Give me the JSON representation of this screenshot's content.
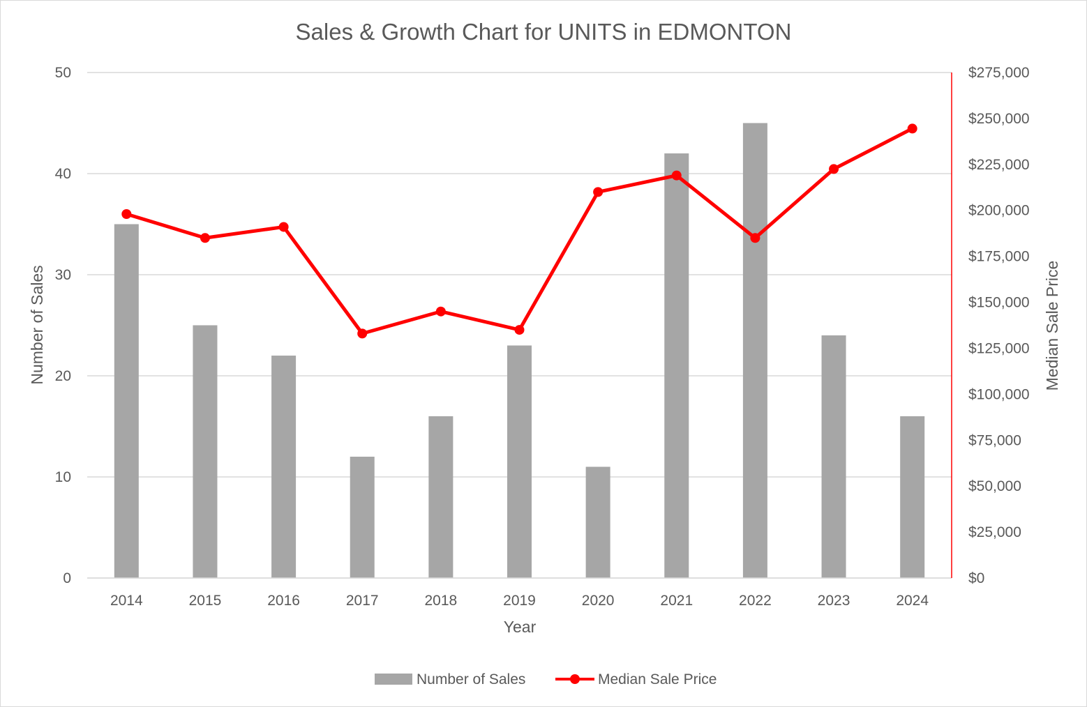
{
  "chart_data": {
    "type": "bar",
    "title": "Sales & Growth Chart for UNITS in EDMONTON",
    "xlabel": "Year",
    "ylabel": "Number of Sales",
    "y2label": "Median Sale Price",
    "categories": [
      "2014",
      "2015",
      "2016",
      "2017",
      "2018",
      "2019",
      "2020",
      "2021",
      "2022",
      "2023",
      "2024"
    ],
    "series": [
      {
        "name": "Number of Sales",
        "type": "bar",
        "axis": "left",
        "color": "#a6a6a6",
        "values": [
          35,
          25,
          22,
          12,
          16,
          23,
          11,
          42,
          45,
          24,
          16
        ]
      },
      {
        "name": "Median Sale Price",
        "type": "line",
        "axis": "right",
        "color": "#ff0000",
        "values": [
          198000,
          185000,
          191000,
          133000,
          145000,
          135000,
          210000,
          219000,
          185000,
          222500,
          244500
        ]
      }
    ],
    "ylim": [
      0,
      50
    ],
    "y_ticks": [
      0,
      10,
      20,
      30,
      40,
      50
    ],
    "y_tick_labels": [
      "0",
      "10",
      "20",
      "30",
      "40",
      "50"
    ],
    "y2lim": [
      0,
      275000
    ],
    "y2_ticks": [
      0,
      25000,
      50000,
      75000,
      100000,
      125000,
      150000,
      175000,
      200000,
      225000,
      250000,
      275000
    ],
    "y2_tick_labels": [
      "$0",
      "$25,000",
      "$50,000",
      "$75,000",
      "$100,000",
      "$125,000",
      "$150,000",
      "$175,000",
      "$200,000",
      "$225,000",
      "$250,000",
      "$275,000"
    ],
    "grid": true,
    "legend": "bottom"
  }
}
